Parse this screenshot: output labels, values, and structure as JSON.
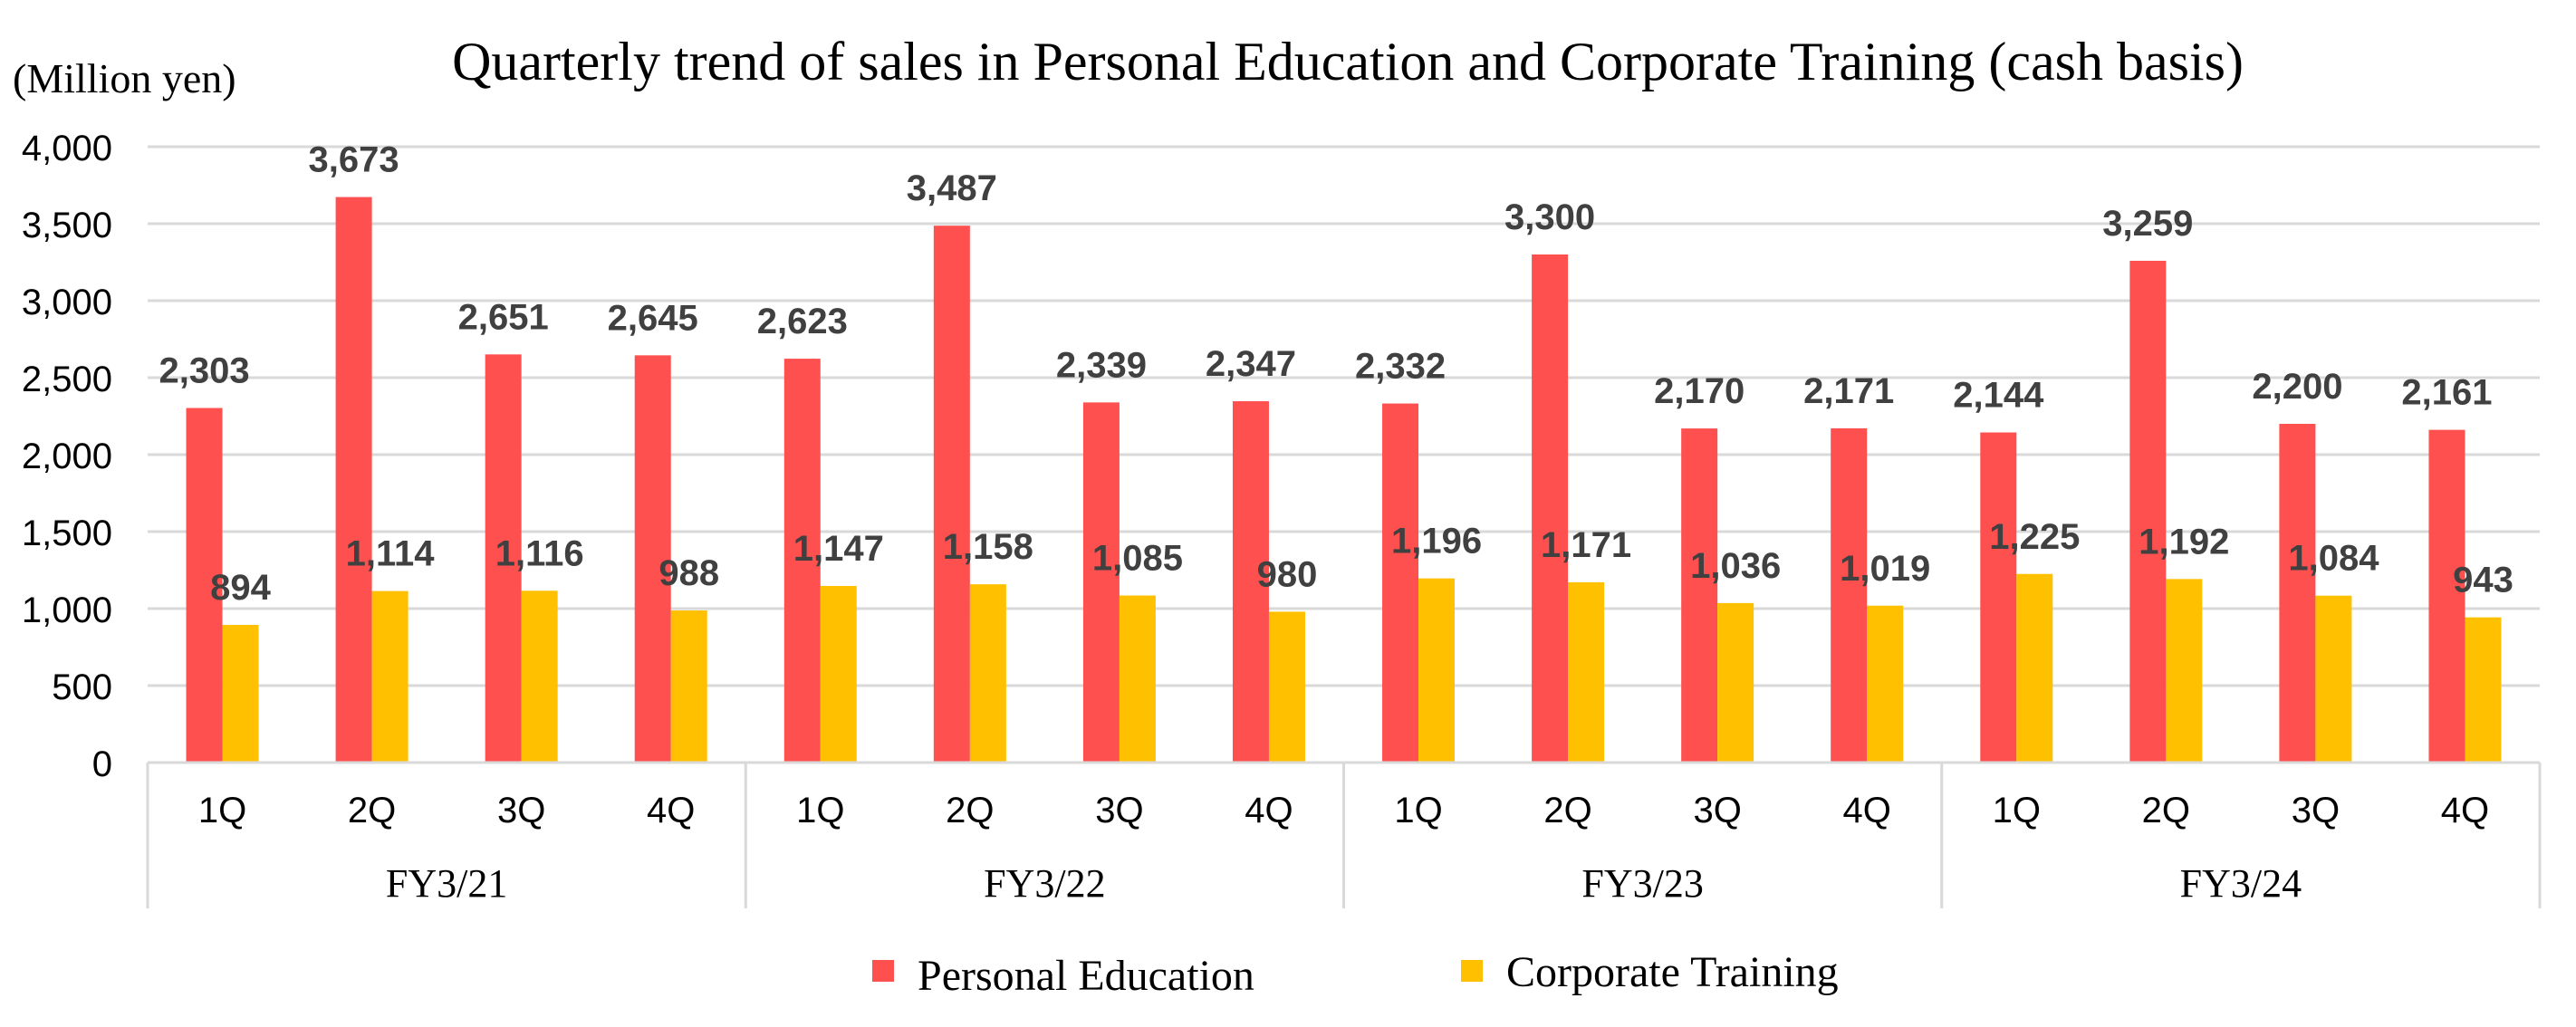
{
  "chart_data": {
    "type": "bar",
    "title": "Quarterly trend of sales in Personal Education and Corporate Training (cash basis)",
    "unit_label": "(Million yen)",
    "ylim": [
      0,
      4000
    ],
    "yticks": [
      0,
      500,
      1000,
      1500,
      2000,
      2500,
      3000,
      3500,
      4000
    ],
    "ytick_labels": [
      "0",
      "500",
      "1,000",
      "1,500",
      "2,000",
      "2,500",
      "3,000",
      "3,500",
      "4,000"
    ],
    "grid": true,
    "legend_position": "bottom",
    "groups": [
      "FY3/21",
      "FY3/22",
      "FY3/23",
      "FY3/24"
    ],
    "categories": [
      "1Q",
      "2Q",
      "3Q",
      "4Q",
      "1Q",
      "2Q",
      "3Q",
      "4Q",
      "1Q",
      "2Q",
      "3Q",
      "4Q",
      "1Q",
      "2Q",
      "3Q",
      "4Q"
    ],
    "series": [
      {
        "name": "Personal Education",
        "color": "#FF5050",
        "values": [
          2303,
          3673,
          2651,
          2645,
          2623,
          3487,
          2339,
          2347,
          2332,
          3300,
          2170,
          2171,
          2144,
          3259,
          2200,
          2161
        ],
        "labels": [
          "2,303",
          "3,673",
          "2,651",
          "2,645",
          "2,623",
          "3,487",
          "2,339",
          "2,347",
          "2,332",
          "3,300",
          "2,170",
          "2,171",
          "2,144",
          "3,259",
          "2,200",
          "2,161"
        ]
      },
      {
        "name": "Corporate Training",
        "color": "#FFC000",
        "values": [
          894,
          1114,
          1116,
          988,
          1147,
          1158,
          1085,
          980,
          1196,
          1171,
          1036,
          1019,
          1225,
          1192,
          1084,
          943
        ],
        "labels": [
          "894",
          "1,114",
          "1,116",
          "988",
          "1,147",
          "1,158",
          "1,085",
          "980",
          "1,196",
          "1,171",
          "1,036",
          "1,019",
          "1,225",
          "1,192",
          "1,084",
          "943"
        ]
      }
    ]
  }
}
